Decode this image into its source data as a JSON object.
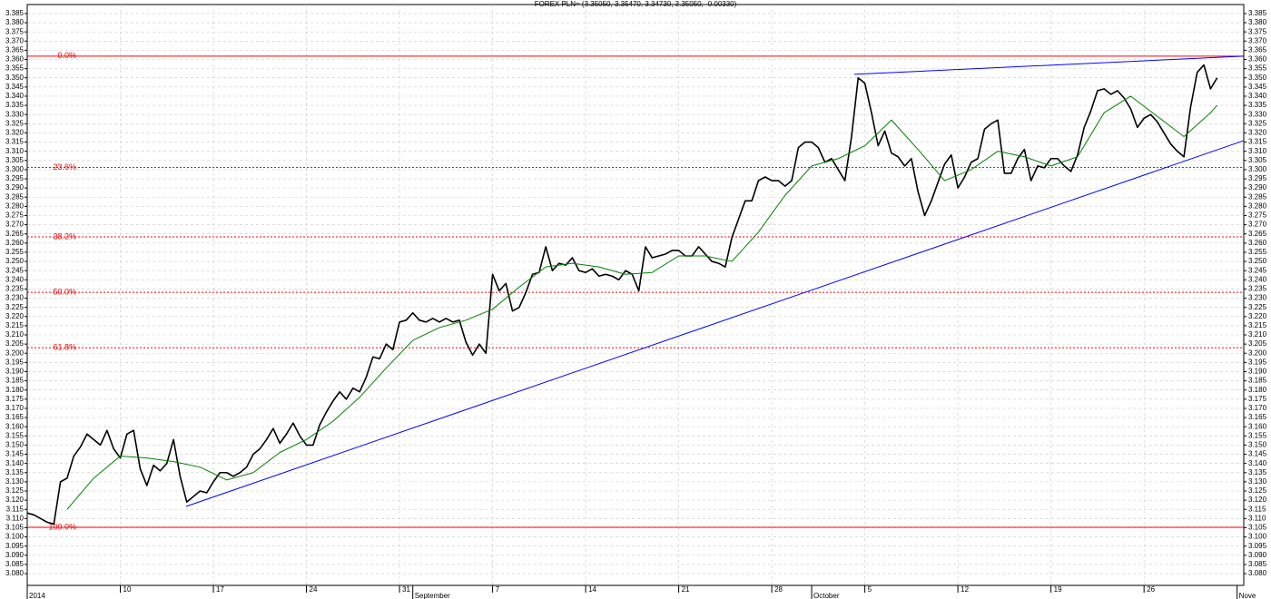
{
  "chart_data": {
    "type": "line",
    "title": "FOREX PLN= (3.35050, 3.35470, 3.34730, 3.35050, -0.00330)",
    "xlim": [
      0,
      91.5
    ],
    "ylim": [
      3.0736,
      3.3899
    ],
    "grid": true,
    "xticks": [
      {
        "value": 7,
        "label": "10"
      },
      {
        "value": 14,
        "label": "17"
      },
      {
        "value": 21,
        "label": "24"
      },
      {
        "value": 28,
        "label": "31"
      },
      {
        "value": 35,
        "label": "7"
      },
      {
        "value": 42,
        "label": "14"
      },
      {
        "value": 49,
        "label": "21"
      },
      {
        "value": 56,
        "label": "28"
      },
      {
        "value": 63,
        "label": "5"
      },
      {
        "value": 70,
        "label": "12"
      },
      {
        "value": 77,
        "label": "19"
      },
      {
        "value": 84,
        "label": "26"
      }
    ],
    "month_labels": [
      {
        "value": 0,
        "label": "2014"
      },
      {
        "value": 29,
        "label": "September"
      },
      {
        "value": 59,
        "label": "October"
      },
      {
        "value": 91,
        "label": "Nove"
      }
    ],
    "yticks": [
      {
        "value": 3.08,
        "label": "3.080"
      },
      {
        "value": 3.085,
        "label": "3.085"
      },
      {
        "value": 3.09,
        "label": "3.090"
      },
      {
        "value": 3.095,
        "label": "3.095"
      },
      {
        "value": 3.1,
        "label": "3.100"
      },
      {
        "value": 3.105,
        "label": "3.105"
      },
      {
        "value": 3.11,
        "label": "3.110"
      },
      {
        "value": 3.115,
        "label": "3.115"
      },
      {
        "value": 3.12,
        "label": "3.120"
      },
      {
        "value": 3.125,
        "label": "3.125"
      },
      {
        "value": 3.13,
        "label": "3.130"
      },
      {
        "value": 3.135,
        "label": "3.135"
      },
      {
        "value": 3.14,
        "label": "3.140"
      },
      {
        "value": 3.145,
        "label": "3.145"
      },
      {
        "value": 3.15,
        "label": "3.150"
      },
      {
        "value": 3.155,
        "label": "3.155"
      },
      {
        "value": 3.16,
        "label": "3.160"
      },
      {
        "value": 3.165,
        "label": "3.165"
      },
      {
        "value": 3.17,
        "label": "3.170"
      },
      {
        "value": 3.175,
        "label": "3.175"
      },
      {
        "value": 3.18,
        "label": "3.180"
      },
      {
        "value": 3.185,
        "label": "3.185"
      },
      {
        "value": 3.19,
        "label": "3.190"
      },
      {
        "value": 3.195,
        "label": "3.195"
      },
      {
        "value": 3.2,
        "label": "3.200"
      },
      {
        "value": 3.205,
        "label": "3.205"
      },
      {
        "value": 3.21,
        "label": "3.210"
      },
      {
        "value": 3.215,
        "label": "3.215"
      },
      {
        "value": 3.22,
        "label": "3.220"
      },
      {
        "value": 3.225,
        "label": "3.225"
      },
      {
        "value": 3.23,
        "label": "3.230"
      },
      {
        "value": 3.235,
        "label": "3.235"
      },
      {
        "value": 3.24,
        "label": "3.240"
      },
      {
        "value": 3.245,
        "label": "3.245"
      },
      {
        "value": 3.25,
        "label": "3.250"
      },
      {
        "value": 3.255,
        "label": "3.255"
      },
      {
        "value": 3.26,
        "label": "3.260"
      },
      {
        "value": 3.265,
        "label": "3.265"
      },
      {
        "value": 3.27,
        "label": "3.270"
      },
      {
        "value": 3.275,
        "label": "3.275"
      },
      {
        "value": 3.28,
        "label": "3.280"
      },
      {
        "value": 3.285,
        "label": "3.285"
      },
      {
        "value": 3.29,
        "label": "3.290"
      },
      {
        "value": 3.295,
        "label": "3.295"
      },
      {
        "value": 3.3,
        "label": "3.300"
      },
      {
        "value": 3.305,
        "label": "3.305"
      },
      {
        "value": 3.31,
        "label": "3.310"
      },
      {
        "value": 3.315,
        "label": "3.315"
      },
      {
        "value": 3.32,
        "label": "3.320"
      },
      {
        "value": 3.325,
        "label": "3.325"
      },
      {
        "value": 3.33,
        "label": "3.330"
      },
      {
        "value": 3.335,
        "label": "3.335"
      },
      {
        "value": 3.34,
        "label": "3.340"
      },
      {
        "value": 3.345,
        "label": "3.345"
      },
      {
        "value": 3.35,
        "label": "3.350"
      },
      {
        "value": 3.355,
        "label": "3.355"
      },
      {
        "value": 3.36,
        "label": "3.360"
      },
      {
        "value": 3.365,
        "label": "3.365"
      },
      {
        "value": 3.37,
        "label": "3.370"
      },
      {
        "value": 3.375,
        "label": "3.375"
      },
      {
        "value": 3.38,
        "label": "3.380"
      },
      {
        "value": 3.385,
        "label": "3.385"
      }
    ],
    "levels": [
      {
        "label": "0.0%",
        "value": 3.3618,
        "style": "solid"
      },
      {
        "label": "23.6%",
        "value": 3.3012,
        "style": "dashed"
      },
      {
        "label": "38.2%",
        "value": 3.2634,
        "style": "dashed"
      },
      {
        "label": "50.0%",
        "value": 3.2332,
        "style": "dashed"
      },
      {
        "label": "61.8%",
        "value": 3.203,
        "style": "dashed"
      },
      {
        "label": "100.0%",
        "value": 3.1052,
        "style": "solid"
      }
    ],
    "level_color": "#ff0000",
    "trendlines": [
      {
        "color": "#0000ff",
        "x": [
          11.95,
          91.5
        ],
        "y": [
          3.1166,
          3.3158
        ]
      },
      {
        "color": "#0000ff",
        "x": [
          62.2,
          91.5
        ],
        "y": [
          3.3519,
          3.3618
        ]
      }
    ],
    "series": [
      {
        "color": "#000000",
        "width": 1.6,
        "x": [
          0,
          0.5,
          1,
          1.5,
          2,
          2.5,
          3,
          3.5,
          4,
          4.5,
          5,
          5.5,
          6,
          6.5,
          7,
          7.5,
          8,
          8.5,
          9,
          9.5,
          10,
          10.5,
          11,
          11.5,
          12,
          12.5,
          13,
          13.5,
          14,
          14.5,
          15,
          15.5,
          16,
          16.5,
          17,
          17.5,
          18,
          18.5,
          19,
          19.5,
          20,
          20.5,
          21,
          21.5,
          22,
          22.5,
          23,
          23.5,
          24,
          24.5,
          25,
          25.5,
          26,
          26.5,
          27,
          27.5,
          28,
          28.5,
          29,
          29.5,
          30,
          30.5,
          31,
          31.5,
          32,
          32.5,
          33,
          33.5,
          34,
          34.5,
          35,
          35.5,
          36,
          36.5,
          37,
          37.5,
          38,
          38.5,
          39,
          39.5,
          40,
          40.5,
          41,
          41.5,
          42,
          42.5,
          43,
          43.5,
          44,
          44.5,
          45,
          45.5,
          46,
          46.5,
          47,
          47.5,
          48,
          48.5,
          49,
          49.5,
          50,
          50.5,
          51,
          51.5,
          52,
          52.5,
          53,
          53.5,
          54,
          54.5,
          55,
          55.5,
          56,
          56.5,
          57,
          57.5,
          58,
          58.5,
          59,
          59.5,
          60,
          60.5,
          61,
          61.5,
          62,
          62.5,
          63,
          63.5,
          64,
          64.5,
          65,
          65.5,
          66,
          66.5,
          67,
          67.5,
          68,
          68.5,
          69,
          69.5,
          70,
          70.5,
          71,
          71.5,
          72,
          72.5,
          73,
          73.5,
          74,
          74.5,
          75,
          75.5,
          76,
          76.5,
          77,
          77.5,
          78,
          78.5,
          79,
          79.5,
          80,
          80.5,
          81,
          81.5,
          82,
          82.5,
          83,
          83.5,
          84,
          84.5,
          85,
          85.5,
          86,
          86.5,
          87,
          87.5,
          88,
          88.5,
          89,
          89.5
        ],
        "values": [
          3.113,
          3.112,
          3.11,
          3.108,
          3.107,
          3.13,
          3.132,
          3.144,
          3.149,
          3.156,
          3.153,
          3.15,
          3.158,
          3.148,
          3.143,
          3.156,
          3.158,
          3.137,
          3.128,
          3.139,
          3.136,
          3.14,
          3.153,
          3.133,
          3.119,
          3.122,
          3.125,
          3.124,
          3.13,
          3.135,
          3.135,
          3.133,
          3.135,
          3.138,
          3.145,
          3.148,
          3.153,
          3.159,
          3.151,
          3.156,
          3.162,
          3.155,
          3.15,
          3.15,
          3.161,
          3.168,
          3.174,
          3.179,
          3.175,
          3.181,
          3.179,
          3.187,
          3.198,
          3.197,
          3.205,
          3.202,
          3.217,
          3.218,
          3.222,
          3.218,
          3.217,
          3.219,
          3.217,
          3.219,
          3.217,
          3.218,
          3.206,
          3.199,
          3.205,
          3.2,
          3.243,
          3.234,
          3.238,
          3.223,
          3.225,
          3.233,
          3.243,
          3.244,
          3.258,
          3.245,
          3.249,
          3.248,
          3.252,
          3.245,
          3.244,
          3.246,
          3.242,
          3.243,
          3.242,
          3.24,
          3.245,
          3.243,
          3.234,
          3.258,
          3.252,
          3.253,
          3.254,
          3.256,
          3.256,
          3.253,
          3.253,
          3.258,
          3.254,
          3.25,
          3.249,
          3.247,
          3.263,
          3.273,
          3.283,
          3.283,
          3.294,
          3.296,
          3.294,
          3.294,
          3.291,
          3.294,
          3.312,
          3.315,
          3.315,
          3.312,
          3.304,
          3.306,
          3.3,
          3.294,
          3.318,
          3.35,
          3.347,
          3.331,
          3.313,
          3.321,
          3.309,
          3.307,
          3.302,
          3.306,
          3.288,
          3.275,
          3.283,
          3.293,
          3.303,
          3.308,
          3.29,
          3.296,
          3.304,
          3.306,
          3.322,
          3.325,
          3.327,
          3.298,
          3.298,
          3.306,
          3.311,
          3.294,
          3.302,
          3.301,
          3.306,
          3.306,
          3.302,
          3.299,
          3.308,
          3.323,
          3.332,
          3.343,
          3.344,
          3.341,
          3.343,
          3.339,
          3.333,
          3.323,
          3.328,
          3.33,
          3.326,
          3.32,
          3.314,
          3.31,
          3.307,
          3.334,
          3.353,
          3.357,
          3.344,
          3.35
        ]
      },
      {
        "color": "#008000",
        "width": 1,
        "x": [
          3,
          5,
          7,
          9,
          11,
          13,
          15,
          17,
          19,
          21,
          23,
          25,
          27,
          29,
          31,
          33,
          35,
          37,
          39,
          41,
          43,
          45,
          47,
          49,
          51,
          53,
          55,
          57,
          59,
          61,
          63,
          65,
          67,
          69,
          71,
          73,
          75,
          77,
          79,
          81,
          83,
          85,
          87,
          89,
          89.5
        ],
        "values": [
          3.115,
          3.132,
          3.144,
          3.143,
          3.141,
          3.138,
          3.131,
          3.135,
          3.146,
          3.153,
          3.163,
          3.176,
          3.192,
          3.207,
          3.214,
          3.218,
          3.224,
          3.236,
          3.247,
          3.249,
          3.247,
          3.243,
          3.244,
          3.253,
          3.253,
          3.25,
          3.266,
          3.286,
          3.302,
          3.306,
          3.313,
          3.327,
          3.311,
          3.294,
          3.3,
          3.31,
          3.307,
          3.302,
          3.307,
          3.331,
          3.34,
          3.329,
          3.318,
          3.331,
          3.335
        ]
      }
    ]
  }
}
